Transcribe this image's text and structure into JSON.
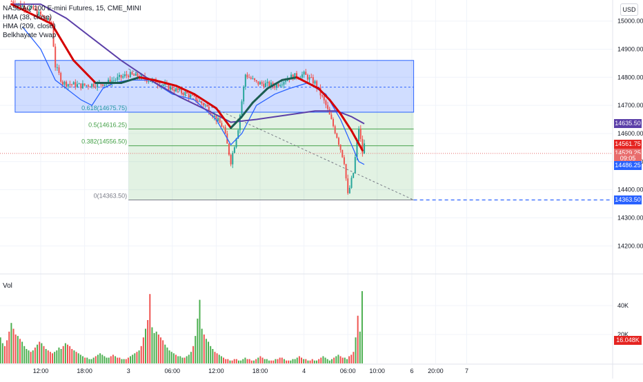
{
  "legend": {
    "symbol": "NASDAQ 100 E-mini Futures, 15, CME_MINI",
    "hma_fast": "HMA (38, close)",
    "hma_slow": "HMA (209, close)",
    "vwap": "Belkhayate Vwap"
  },
  "currency": "USD",
  "volume_label": "Vol",
  "price_tags": [
    {
      "text": "14635.50",
      "price": 14635.5,
      "color": "#5b3fa8"
    },
    {
      "text": "14561.75",
      "price": 14561.75,
      "color": "#e52421"
    },
    {
      "text": "14529.25",
      "price": 14529.25,
      "color": "#e86b6b"
    },
    {
      "text": "09:05",
      "price": 14510,
      "color": "#e86b6b"
    },
    {
      "text": "14486.25",
      "price": 14486.25,
      "color": "#2962ff"
    },
    {
      "text": "14363.50",
      "price": 14363.5,
      "color": "#2962ff"
    }
  ],
  "volume_tag": {
    "text": "16.048K",
    "color": "#e52421"
  },
  "fib_labels": [
    {
      "text": "0.618(14675.75)",
      "price": 14675.75,
      "color": "#2196a3"
    },
    {
      "text": "0.5(14616.25)",
      "price": 14616.25,
      "color": "#43a047"
    },
    {
      "text": "0.382(14556.50)",
      "price": 14556.5,
      "color": "#43a047"
    },
    {
      "text": "0(14363.50)",
      "price": 14363.5,
      "color": "#787b86"
    }
  ],
  "chart_data": {
    "type": "candlestick",
    "title": "NASDAQ 100 E-mini Futures, 15, CME_MINI",
    "ylim": [
      14115,
      15075
    ],
    "y_ticks": [
      14200,
      14300,
      14400,
      14500,
      14600,
      14700,
      14800,
      14900,
      15000
    ],
    "y_tick_labels": [
      "14200.00",
      "14300.00",
      "14400.00",
      "14500.00",
      "14600.00",
      "14700.00",
      "14800.00",
      "14900.00",
      "15000.00"
    ],
    "x_ticks": [
      {
        "label": "12:00",
        "t": 0
      },
      {
        "label": "18:00",
        "t": 24
      },
      {
        "label": "3",
        "t": 48
      },
      {
        "label": "06:00",
        "t": 72
      },
      {
        "label": "12:00",
        "t": 96
      },
      {
        "label": "18:00",
        "t": 120
      },
      {
        "label": "4",
        "t": 144
      },
      {
        "label": "06:00",
        "t": 168
      },
      {
        "label": "10:00",
        "t": 184
      },
      {
        "label": "6",
        "t": 203
      },
      {
        "label": "20:00",
        "t": 216
      },
      {
        "label": "7",
        "t": 233
      }
    ],
    "price_path": [
      [
        -16,
        15070
      ],
      [
        -4,
        15040
      ],
      [
        6,
        14990
      ],
      [
        8,
        14840
      ],
      [
        12,
        14780
      ],
      [
        22,
        14770
      ],
      [
        36,
        14780
      ],
      [
        48,
        14810
      ],
      [
        60,
        14790
      ],
      [
        72,
        14760
      ],
      [
        80,
        14740
      ],
      [
        90,
        14700
      ],
      [
        100,
        14620
      ],
      [
        104,
        14500
      ],
      [
        108,
        14620
      ],
      [
        112,
        14810
      ],
      [
        118,
        14780
      ],
      [
        128,
        14770
      ],
      [
        136,
        14800
      ],
      [
        144,
        14810
      ],
      [
        150,
        14780
      ],
      [
        156,
        14700
      ],
      [
        162,
        14590
      ],
      [
        166,
        14500
      ],
      [
        168,
        14380
      ],
      [
        171,
        14460
      ],
      [
        174,
        14620
      ],
      [
        176,
        14530
      ],
      [
        177,
        14560
      ]
    ],
    "hma_fast": [
      [
        -16,
        15060
      ],
      [
        6,
        14990
      ],
      [
        18,
        14860
      ],
      [
        30,
        14780
      ],
      [
        44,
        14780
      ],
      [
        54,
        14800
      ],
      [
        62,
        14790
      ],
      [
        74,
        14770
      ],
      [
        84,
        14740
      ],
      [
        96,
        14690
      ],
      [
        104,
        14620
      ],
      [
        110,
        14660
      ],
      [
        116,
        14710
      ],
      [
        124,
        14760
      ],
      [
        132,
        14790
      ],
      [
        140,
        14800
      ],
      [
        146,
        14780
      ],
      [
        152,
        14760
      ],
      [
        158,
        14720
      ],
      [
        164,
        14670
      ],
      [
        170,
        14610
      ],
      [
        176,
        14540
      ]
    ],
    "hma_slow": [
      [
        -16,
        15060
      ],
      [
        0,
        15060
      ],
      [
        14,
        15010
      ],
      [
        30,
        14930
      ],
      [
        44,
        14860
      ],
      [
        60,
        14790
      ],
      [
        76,
        14730
      ],
      [
        92,
        14680
      ],
      [
        104,
        14640
      ],
      [
        118,
        14650
      ],
      [
        134,
        14665
      ],
      [
        150,
        14680
      ],
      [
        162,
        14680
      ],
      [
        170,
        14660
      ],
      [
        177,
        14635
      ]
    ],
    "vwap_line": [
      [
        -10,
        14980
      ],
      [
        0,
        14900
      ],
      [
        8,
        14790
      ],
      [
        14,
        14760
      ],
      [
        22,
        14720
      ],
      [
        28,
        14700
      ],
      [
        34,
        14760
      ],
      [
        40,
        14780
      ],
      [
        48,
        14790
      ],
      [
        60,
        14790
      ],
      [
        72,
        14740
      ],
      [
        84,
        14720
      ],
      [
        96,
        14650
      ],
      [
        104,
        14560
      ],
      [
        110,
        14600
      ],
      [
        118,
        14700
      ],
      [
        128,
        14740
      ],
      [
        136,
        14760
      ],
      [
        146,
        14780
      ],
      [
        156,
        14740
      ],
      [
        164,
        14650
      ],
      [
        170,
        14560
      ],
      [
        174,
        14500
      ],
      [
        177,
        14490
      ]
    ],
    "fib_box_blue": {
      "t_start": -14,
      "t_end": 204,
      "top": 14860,
      "bottom": 14675.75,
      "mid": 14765
    },
    "fib_box_green": {
      "t_start": 48,
      "t_end": 204,
      "levels": [
        14675.75,
        14616.25,
        14556.5,
        14363.5
      ]
    },
    "trend_dashed": {
      "t_start": 48,
      "p_start": 14830,
      "t_end": 204,
      "p_end": 14363.5
    },
    "volume": [
      18,
      14,
      12,
      16,
      22,
      28,
      24,
      20,
      19,
      17,
      15,
      12,
      10,
      9,
      8,
      9,
      11,
      13,
      15,
      14,
      12,
      10,
      9,
      8,
      7,
      8,
      9,
      11,
      10,
      12,
      14,
      13,
      12,
      10,
      9,
      8,
      7,
      6,
      5,
      4,
      4,
      3,
      3,
      4,
      5,
      6,
      7,
      6,
      5,
      4,
      4,
      5,
      6,
      5,
      4,
      4,
      3,
      3,
      3,
      4,
      5,
      6,
      7,
      8,
      9,
      12,
      18,
      24,
      30,
      48,
      25,
      21,
      22,
      20,
      18,
      16,
      13,
      11,
      9,
      8,
      7,
      6,
      5,
      5,
      4,
      4,
      5,
      6,
      8,
      12,
      19,
      31,
      44,
      24,
      20,
      17,
      15,
      12,
      10,
      8,
      7,
      6,
      5,
      4,
      3,
      3,
      2,
      2,
      3,
      3,
      2,
      2,
      3,
      4,
      3,
      3,
      2,
      2,
      3,
      4,
      5,
      4,
      3,
      3,
      2,
      2,
      2,
      3,
      3,
      4,
      4,
      3,
      2,
      2,
      2,
      3,
      3,
      4,
      5,
      4,
      3,
      3,
      2,
      2,
      3,
      2,
      2,
      3,
      4,
      5,
      4,
      3,
      2,
      3,
      4,
      5,
      6,
      5,
      4,
      4,
      3,
      5,
      6,
      8,
      18,
      33,
      22,
      50
    ],
    "volume_ylim": [
      0,
      60
    ],
    "volume_ticks": [
      20,
      40
    ],
    "volume_tick_labels": [
      "20K",
      "40K"
    ]
  }
}
